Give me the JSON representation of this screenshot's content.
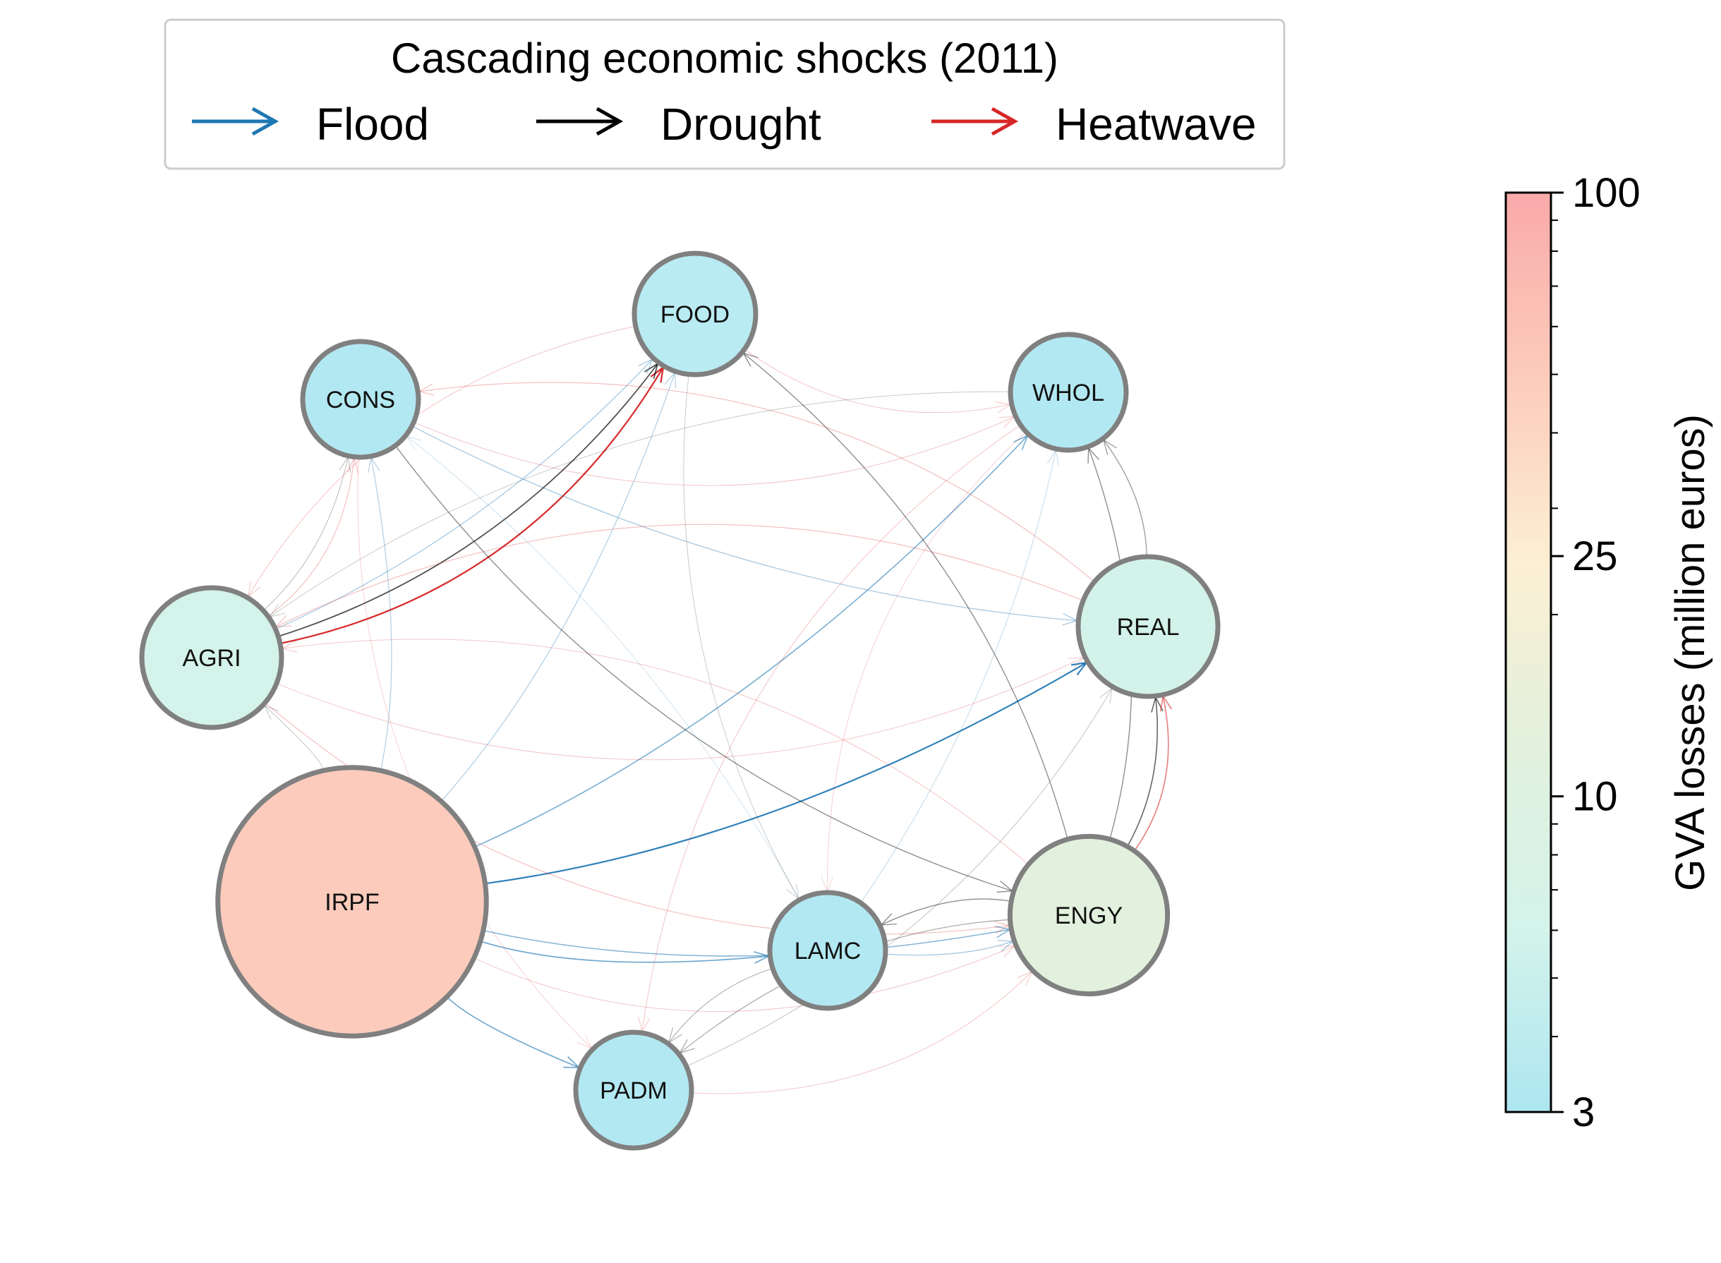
{
  "legend": {
    "title": "Cascading economic shocks (2011)",
    "items": [
      {
        "label": "Flood",
        "color": "#1f77b4"
      },
      {
        "label": "Drought",
        "color": "#000000"
      },
      {
        "label": "Heatwave",
        "color": "#d62728"
      }
    ]
  },
  "colorbar": {
    "label": "GVA losses (million euros)",
    "scale": "log",
    "ticks": [
      "100",
      "25",
      "10",
      "3"
    ],
    "tick_values": [
      100,
      25,
      10,
      3
    ],
    "range": [
      3,
      100
    ],
    "colors": [
      "#ade6f1",
      "#d4f3ea",
      "#e2f1dd",
      "#fcefd3",
      "#fccbbb",
      "#f9aaaa"
    ]
  },
  "network": {
    "nodes": [
      {
        "id": "FOOD",
        "label": "FOOD",
        "value": 5,
        "fill": "#b9ebf2"
      },
      {
        "id": "CONS",
        "label": "CONS",
        "value": 4,
        "fill": "#b2e8f2"
      },
      {
        "id": "WHOL",
        "label": "WHOL",
        "value": 4,
        "fill": "#b2e8f2"
      },
      {
        "id": "AGRI",
        "label": "AGRI",
        "value": 9,
        "fill": "#d4f3ea"
      },
      {
        "id": "REAL",
        "label": "REAL",
        "value": 9,
        "fill": "#d3f3ea"
      },
      {
        "id": "IRPF",
        "label": "IRPF",
        "value": 70,
        "fill": "#fccbbb"
      },
      {
        "id": "ENGY",
        "label": "ENGY",
        "value": 14,
        "fill": "#e2f1dd"
      },
      {
        "id": "LAMC",
        "label": "LAMC",
        "value": 4,
        "fill": "#b2e8f2"
      },
      {
        "id": "PADM",
        "label": "PADM",
        "value": 4,
        "fill": "#b2e8f2"
      }
    ],
    "edges": [
      {
        "from": "AGRI",
        "to": "FOOD",
        "hazard": "Heatwave",
        "strength": 0.9
      },
      {
        "from": "AGRI",
        "to": "FOOD",
        "hazard": "Drought",
        "strength": 0.6
      },
      {
        "from": "AGRI",
        "to": "FOOD",
        "hazard": "Flood",
        "strength": 0.3
      },
      {
        "from": "IRPF",
        "to": "REAL",
        "hazard": "Flood",
        "strength": 0.85
      },
      {
        "from": "IRPF",
        "to": "WHOL",
        "hazard": "Flood",
        "strength": 0.5
      },
      {
        "from": "IRPF",
        "to": "LAMC",
        "hazard": "Flood",
        "strength": 0.55
      },
      {
        "from": "IRPF",
        "to": "PADM",
        "hazard": "Flood",
        "strength": 0.55
      },
      {
        "from": "IRPF",
        "to": "ENGY",
        "hazard": "Flood",
        "strength": 0.45
      },
      {
        "from": "IRPF",
        "to": "FOOD",
        "hazard": "Flood",
        "strength": 0.25
      },
      {
        "from": "IRPF",
        "to": "CONS",
        "hazard": "Flood",
        "strength": 0.25
      },
      {
        "from": "ENGY",
        "to": "REAL",
        "hazard": "Drought",
        "strength": 0.5
      },
      {
        "from": "ENGY",
        "to": "REAL",
        "hazard": "Heatwave",
        "strength": 0.5
      },
      {
        "from": "ENGY",
        "to": "WHOL",
        "hazard": "Drought",
        "strength": 0.35
      },
      {
        "from": "ENGY",
        "to": "FOOD",
        "hazard": "Drought",
        "strength": 0.35
      },
      {
        "from": "ENGY",
        "to": "LAMC",
        "hazard": "Drought",
        "strength": 0.35
      },
      {
        "from": "ENGY",
        "to": "PADM",
        "hazard": "Drought",
        "strength": 0.25
      },
      {
        "from": "CONS",
        "to": "ENGY",
        "hazard": "Drought",
        "strength": 0.35
      },
      {
        "from": "CONS",
        "to": "REAL",
        "hazard": "Flood",
        "strength": 0.3
      },
      {
        "from": "LAMC",
        "to": "ENGY",
        "hazard": "Flood",
        "strength": 0.3
      },
      {
        "from": "LAMC",
        "to": "PADM",
        "hazard": "Drought",
        "strength": 0.2
      },
      {
        "from": "LAMC",
        "to": "WHOL",
        "hazard": "Flood",
        "strength": 0.15
      },
      {
        "from": "REAL",
        "to": "WHOL",
        "hazard": "Drought",
        "strength": 0.3
      },
      {
        "from": "REAL",
        "to": "CONS",
        "hazard": "Heatwave",
        "strength": 0.2
      },
      {
        "from": "REAL",
        "to": "AGRI",
        "hazard": "Heatwave",
        "strength": 0.2
      },
      {
        "from": "WHOL",
        "to": "PADM",
        "hazard": "Heatwave",
        "strength": 0.15
      },
      {
        "from": "AGRI",
        "to": "CONS",
        "hazard": "Heatwave",
        "strength": 0.2
      },
      {
        "from": "AGRI",
        "to": "CONS",
        "hazard": "Drought",
        "strength": 0.15
      },
      {
        "from": "AGRI",
        "to": "ENGY",
        "hazard": "Heatwave",
        "strength": 0.2
      },
      {
        "from": "AGRI",
        "to": "REAL",
        "hazard": "Heatwave",
        "strength": 0.15
      },
      {
        "from": "FOOD",
        "to": "WHOL",
        "hazard": "Heatwave",
        "strength": 0.15
      },
      {
        "from": "FOOD",
        "to": "AGRI",
        "hazard": "Heatwave",
        "strength": 0.15
      },
      {
        "from": "CONS",
        "to": "WHOL",
        "hazard": "Heatwave",
        "strength": 0.15
      },
      {
        "from": "IRPF",
        "to": "AGRI",
        "hazard": "Drought",
        "strength": 0.12
      },
      {
        "from": "PADM",
        "to": "ENGY",
        "hazard": "Heatwave",
        "strength": 0.15
      },
      {
        "from": "PADM",
        "to": "REAL",
        "hazard": "Drought",
        "strength": 0.12
      },
      {
        "from": "LAMC",
        "to": "CONS",
        "hazard": "Flood",
        "strength": 0.1
      },
      {
        "from": "WHOL",
        "to": "AGRI",
        "hazard": "Drought",
        "strength": 0.1
      },
      {
        "from": "ENGY",
        "to": "AGRI",
        "hazard": "Heatwave",
        "strength": 0.15
      },
      {
        "from": "IRPF",
        "to": "ENGY",
        "hazard": "Heatwave",
        "strength": 0.15
      },
      {
        "from": "CONS",
        "to": "PADM",
        "hazard": "Heatwave",
        "strength": 0.1
      },
      {
        "from": "FOOD",
        "to": "LAMC",
        "hazard": "Drought",
        "strength": 0.1
      },
      {
        "from": "WHOL",
        "to": "LAMC",
        "hazard": "Heatwave",
        "strength": 0.1
      }
    ]
  }
}
